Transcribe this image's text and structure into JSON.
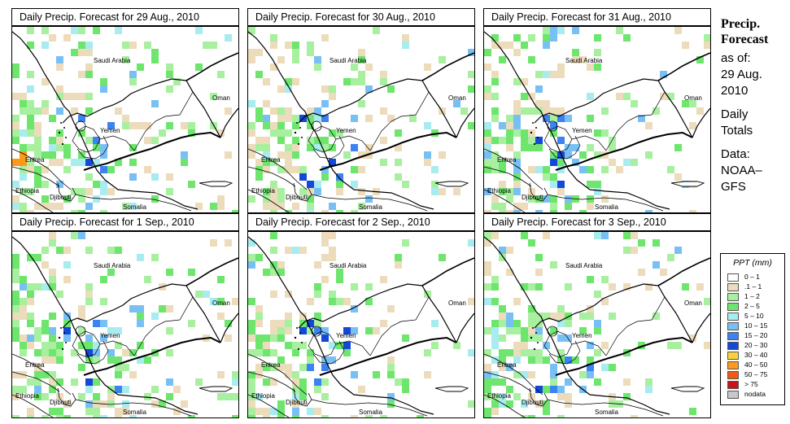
{
  "panels": [
    {
      "title": "Daily Precip. Forecast for  29 Aug., 2010"
    },
    {
      "title": "Daily Precip. Forecast for  30 Aug., 2010"
    },
    {
      "title": "Daily Precip. Forecast for  31 Aug., 2010"
    },
    {
      "title": "Daily Precip. Forecast for  1 Sep., 2010"
    },
    {
      "title": "Daily Precip. Forecast for  2 Sep., 2010"
    },
    {
      "title": "Daily Precip. Forecast for  3 Sep., 2010"
    }
  ],
  "map_labels": {
    "saudi_arabia": "Saudi Arabia",
    "oman": "Oman",
    "yemen": "Yemen",
    "eritrea": "Eritrea",
    "ethiopia": "Ethiopia",
    "djibouti": "Djibouti",
    "somalia": "Somalia"
  },
  "side_panel": {
    "title_line1": "Precip.",
    "title_line2": "Forecast",
    "as_of_label": "as of:",
    "date_line1": "29 Aug.",
    "date_line2": "2010",
    "totals_line1": "Daily",
    "totals_line2": "Totals",
    "source_line1": "Data:",
    "source_line2": "NOAA–",
    "source_line3": "GFS"
  },
  "legend": {
    "title": "PPT (mm)",
    "entries": [
      {
        "label": "0 – 1",
        "color": "#ffffff"
      },
      {
        "label": ".1 – 1",
        "color": "#ecdcbc"
      },
      {
        "label": "1 – 2",
        "color": "#a8f0a0"
      },
      {
        "label": "2 – 5",
        "color": "#6ee66e"
      },
      {
        "label": "5 – 10",
        "color": "#a8ecf0"
      },
      {
        "label": "10 – 15",
        "color": "#78c0f4"
      },
      {
        "label": "15 – 20",
        "color": "#3c82f0"
      },
      {
        "label": "20 – 30",
        "color": "#1448d8"
      },
      {
        "label": "30 – 40",
        "color": "#fcd23c"
      },
      {
        "label": "40 – 50",
        "color": "#fc9a1c"
      },
      {
        "label": "50 – 75",
        "color": "#f05a14"
      },
      {
        "label": "> 75",
        "color": "#c81414"
      },
      {
        "label": "nodata",
        "color": "#c8c8c8"
      }
    ]
  }
}
